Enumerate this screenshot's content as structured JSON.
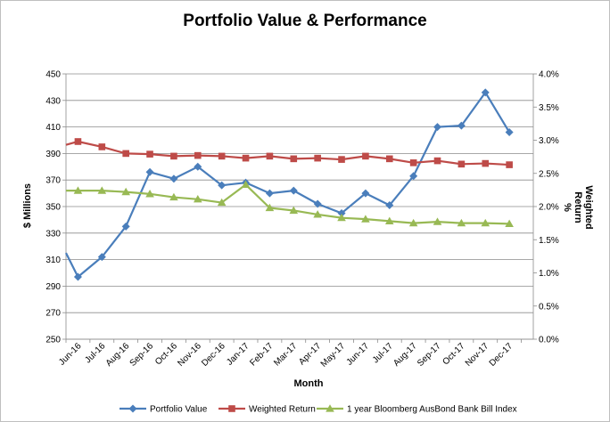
{
  "chart_data": {
    "type": "line",
    "title": "Portfolio Value & Performance",
    "xlabel": "Month",
    "ylabel": "$ Millions",
    "y2label_lines": [
      "Weighted",
      "Return",
      "%"
    ],
    "categories": [
      "Jun-16",
      "Jul-16",
      "Aug-16",
      "Sep-16",
      "Oct-16",
      "Nov-16",
      "Dec-16",
      "Jan-17",
      "Feb-17",
      "Mar-17",
      "Apr-17",
      "May-17",
      "Jun-17",
      "Jul-17",
      "Aug-17",
      "Sep-17",
      "Oct-17",
      "Nov-17",
      "Dec-17"
    ],
    "ylim": [
      250,
      450
    ],
    "yticks": [
      250,
      270,
      290,
      310,
      330,
      350,
      370,
      390,
      410,
      430,
      450
    ],
    "y2lim": [
      0,
      4.0
    ],
    "y2ticks": [
      0.0,
      0.5,
      1.0,
      1.5,
      2.0,
      2.5,
      3.0,
      3.5,
      4.0
    ],
    "y2_tick_suffix": "%",
    "grid": "horizontal",
    "legend_position": "bottom",
    "series": [
      {
        "name": "Portfolio Value",
        "axis": "left",
        "color": "#4a7ebb",
        "marker": "diamond",
        "start_value": 315,
        "values": [
          297,
          312,
          335,
          376,
          371,
          380,
          366,
          368,
          360,
          362,
          352,
          345,
          360,
          351,
          373,
          410,
          411,
          436,
          406
        ]
      },
      {
        "name": "Weighted Return",
        "axis": "right",
        "color": "#be4b48",
        "marker": "square",
        "start_value": 2.93,
        "values": [
          2.98,
          2.9,
          2.8,
          2.79,
          2.76,
          2.77,
          2.76,
          2.73,
          2.76,
          2.72,
          2.73,
          2.71,
          2.76,
          2.72,
          2.66,
          2.69,
          2.64,
          2.65,
          2.63
        ]
      },
      {
        "name": "1 year Bloomberg AusBond Bank Bill Index",
        "axis": "right",
        "color": "#98b954",
        "marker": "triangle",
        "start_value": 2.24,
        "values": [
          2.24,
          2.24,
          2.22,
          2.19,
          2.14,
          2.11,
          2.06,
          2.33,
          1.98,
          1.94,
          1.88,
          1.83,
          1.81,
          1.78,
          1.75,
          1.77,
          1.75,
          1.75,
          1.74
        ]
      }
    ]
  }
}
